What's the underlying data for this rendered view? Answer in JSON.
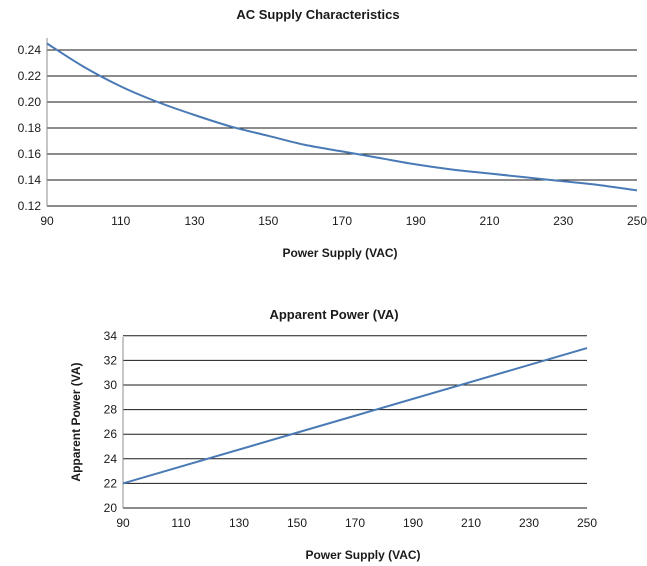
{
  "chart_data": [
    {
      "type": "line",
      "title": "AC Supply Characteristics",
      "xlabel": "Power Supply (VAC)",
      "ylabel": "",
      "xlim": [
        90,
        250
      ],
      "ylim": [
        0.12,
        0.25
      ],
      "xticks": [
        "90",
        "110",
        "130",
        "150",
        "170",
        "190",
        "210",
        "230",
        "250"
      ],
      "yticks": [
        "0.12",
        "0.14",
        "0.16",
        "0.18",
        "0.20",
        "0.22",
        "0.24"
      ],
      "grid": "horizontal",
      "series_color": "#4a7ab5",
      "x": [
        90,
        100,
        110,
        120,
        130,
        140,
        150,
        160,
        170,
        180,
        190,
        200,
        210,
        220,
        230,
        240,
        250
      ],
      "y": [
        0.245,
        0.227,
        0.212,
        0.2,
        0.19,
        0.181,
        0.174,
        0.167,
        0.162,
        0.157,
        0.152,
        0.148,
        0.145,
        0.142,
        0.139,
        0.136,
        0.132
      ]
    },
    {
      "type": "line",
      "title": "Apparent Power (VA)",
      "xlabel": "Power Supply (VAC)",
      "ylabel": "Apparent Power (VA)",
      "xlim": [
        90,
        250
      ],
      "ylim": [
        20,
        34
      ],
      "xticks": [
        "90",
        "110",
        "130",
        "150",
        "170",
        "190",
        "210",
        "230",
        "250"
      ],
      "yticks": [
        "20",
        "22",
        "24",
        "26",
        "28",
        "30",
        "32",
        "34"
      ],
      "grid": "horizontal",
      "series_color": "#4a7ab5",
      "x": [
        90,
        250
      ],
      "y": [
        22,
        33
      ]
    }
  ]
}
